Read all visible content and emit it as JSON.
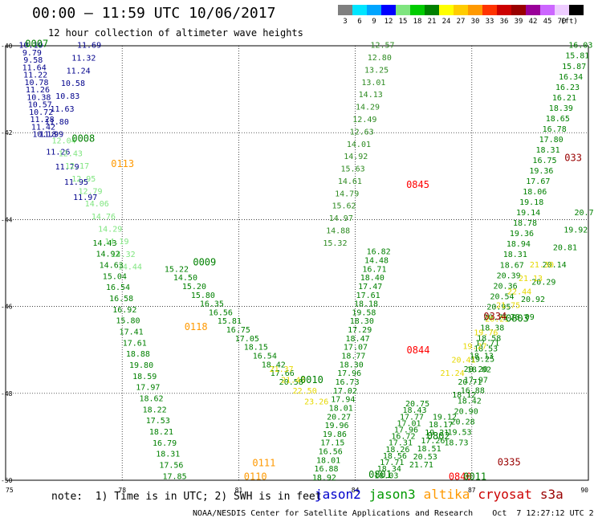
{
  "header": {
    "title": "00:00 – 11:59 UTC 10/06/2017",
    "subtitle": "12 hour collection of altimeter wave heights"
  },
  "colorbar": {
    "unit": "(ft)",
    "bins": [
      {
        "label": "3",
        "color": "#7f7f7f"
      },
      {
        "label": "6",
        "color": "#00e5ff"
      },
      {
        "label": "9",
        "color": "#00a5ff"
      },
      {
        "label": "12",
        "color": "#0000ff"
      },
      {
        "label": "15",
        "color": "#7fe57f"
      },
      {
        "label": "18",
        "color": "#00cc00"
      },
      {
        "label": "21",
        "color": "#008000"
      },
      {
        "label": "24",
        "color": "#ffff00"
      },
      {
        "label": "27",
        "color": "#ffcc00"
      },
      {
        "label": "30",
        "color": "#ff9900"
      },
      {
        "label": "33",
        "color": "#ff3300"
      },
      {
        "label": "36",
        "color": "#cc0000"
      },
      {
        "label": "39",
        "color": "#990000"
      },
      {
        "label": "42",
        "color": "#990099"
      },
      {
        "label": "45",
        "color": "#cc66ff"
      },
      {
        "label": "70",
        "color": "#eeccff"
      },
      {
        "label": "",
        "color": "#000000"
      }
    ]
  },
  "map": {
    "lon_ticks": [
      "75",
      "78",
      "81",
      "84",
      "87",
      "90"
    ],
    "lat_ticks": [
      "-40",
      "-42",
      "-44",
      "-46",
      "-48",
      "-50"
    ],
    "lon_range": [
      75,
      90
    ],
    "lat_range": [
      -50,
      -40
    ],
    "grid": true
  },
  "pass_labels": [
    {
      "text": "0007",
      "color": "#008000",
      "lon": 75.8,
      "lat": -40.03
    },
    {
      "text": "0008",
      "color": "#008000",
      "lon": 77.0,
      "lat": -42.21
    },
    {
      "text": "0113",
      "color": "#ff9900",
      "lon": 78.01,
      "lat": -42.79
    },
    {
      "text": "0009",
      "color": "#008000",
      "lon": 80.12,
      "lat": -45.06
    },
    {
      "text": "0118",
      "color": "#ff9900",
      "lon": 79.9,
      "lat": -46.54
    },
    {
      "text": "0010",
      "color": "#008000",
      "lon": 82.88,
      "lat": -47.76
    },
    {
      "text": "0845",
      "color": "#ff0000",
      "lon": 85.61,
      "lat": -43.27
    },
    {
      "text": "0844",
      "color": "#ff0000",
      "lon": 85.62,
      "lat": -47.08
    },
    {
      "text": "0802",
      "color": "#008000",
      "lon": 86.14,
      "lat": -49.06
    },
    {
      "text": "0801",
      "color": "#008000",
      "lon": 84.64,
      "lat": -49.94
    },
    {
      "text": "0111",
      "color": "#ff9900",
      "lon": 81.65,
      "lat": -49.68
    },
    {
      "text": "0110",
      "color": "#ff9900",
      "lon": 81.43,
      "lat": -49.99
    },
    {
      "text": "0840",
      "color": "#ff0000",
      "lon": 86.7,
      "lat": -49.99
    },
    {
      "text": "0011",
      "color": "#008000",
      "lon": 87.08,
      "lat": -49.99
    },
    {
      "text": "0335",
      "color": "#990000",
      "lon": 87.96,
      "lat": -49.66
    },
    {
      "text": "0334",
      "color": "#990000",
      "lon": 87.6,
      "lat": -46.3
    },
    {
      "text": "0803",
      "color": "#008000",
      "lon": 88.17,
      "lat": -46.35
    },
    {
      "text": "033",
      "color": "#990000",
      "lon": 89.61,
      "lat": -42.65
    }
  ],
  "tracks": [
    {
      "sat": "jason2",
      "color": "#00008b",
      "lon0": 77.15,
      "lat0": -40.05,
      "lon1": 76.18,
      "lat1": -42.1,
      "values": [
        "11.69",
        "11.32",
        "11.24",
        "10.58",
        "10.83",
        "11.63",
        "11.80",
        "11.99"
      ]
    },
    {
      "sat": "jason2",
      "color": "#00008b",
      "lon0": 75.65,
      "lat0": -40.05,
      "lon1": 76.0,
      "lat1": -42.1,
      "values": [
        "10.19",
        "9.79",
        "9.58",
        "11.64",
        "11.22",
        "10.78",
        "11.26",
        "10.38",
        "10.57",
        "10.72",
        "11.28",
        "11.42",
        "10.18"
      ]
    },
    {
      "sat": "jason2",
      "color": "#00008b",
      "lon0": 76.35,
      "lat0": -42.5,
      "lon1": 77.05,
      "lat1": -43.55,
      "values": [
        "11.26",
        "11.79",
        "11.95",
        "11.97"
      ]
    },
    {
      "sat": "jason3",
      "color": "#2e8b22",
      "lon0": 84.7,
      "lat0": -40.05,
      "lon1": 83.48,
      "lat1": -44.6,
      "values": [
        "12.57",
        "12.80",
        "13.25",
        "13.01",
        "14.13",
        "14.29",
        "12.49",
        "12.63",
        "14.01",
        "14.92",
        "15.63",
        "14.61",
        "14.79",
        "15.62",
        "14.97",
        "14.88",
        "15.32"
      ]
    },
    {
      "sat": "jason3",
      "color": "#7fe57f",
      "lon0": 76.5,
      "lat0": -42.25,
      "lon1": 78.2,
      "lat1": -45.15,
      "values": [
        "12.04",
        "12.43",
        "12.17",
        "12.95",
        "12.79",
        "14.06",
        "14.76",
        "14.29",
        "14.19",
        "14.32",
        "14.44"
      ]
    },
    {
      "sat": "jason3",
      "color": "#008000",
      "lon0": 77.55,
      "lat0": -44.6,
      "lon1": 79.35,
      "lat1": -49.97,
      "values": [
        "14.43",
        "14.92",
        "14.63",
        "15.04",
        "16.54",
        "16.58",
        "16.92",
        "15.80",
        "17.41",
        "17.61",
        "18.88",
        "19.80",
        "18.59",
        "17.97",
        "18.62",
        "18.22",
        "17.53",
        "18.21",
        "16.79",
        "18.31",
        "17.56",
        "17.85"
      ]
    },
    {
      "sat": "jason3",
      "color": "#008000",
      "lon0": 79.4,
      "lat0": -45.2,
      "lon1": 82.35,
      "lat1": -47.8,
      "values": [
        "15.22",
        "14.50",
        "15.20",
        "15.80",
        "16.35",
        "16.56",
        "15.81",
        "16.75",
        "17.05",
        "18.15",
        "16.54",
        "18.42",
        "17.66",
        "20.58"
      ]
    },
    {
      "sat": "jason3",
      "color": "#008000",
      "lon0": 84.6,
      "lat0": -44.8,
      "lon1": 83.2,
      "lat1": -50.0,
      "values": [
        "16.82",
        "14.48",
        "16.71",
        "18.40",
        "17.47",
        "17.61",
        "18.18",
        "19.58",
        "18.30",
        "17.29",
        "18.47",
        "17.07",
        "18.77",
        "18.30",
        "17.96",
        "16.73",
        "17.02",
        "17.94",
        "18.01",
        "20.27",
        "19.96",
        "19.86",
        "17.15",
        "16.56",
        "18.01",
        "16.88",
        "18.92"
      ]
    },
    {
      "sat": "jason3",
      "color": "#008000",
      "lon0": 89.8,
      "lat0": -40.05,
      "lon1": 86.6,
      "lat1": -49.2,
      "values": [
        "16.03",
        "15.81",
        "15.87",
        "16.34",
        "16.23",
        "16.21",
        "18.39",
        "18.65",
        "16.78",
        "17.80",
        "18.31",
        "16.75",
        "19.36",
        "17.67",
        "18.06",
        "19.18",
        "19.14",
        "18.78",
        "19.36",
        "18.94",
        "18.31",
        "18.67",
        "20.39",
        "20.36",
        "20.54",
        "20.95",
        "20.75",
        "18.38",
        "18.58",
        "18.53",
        "19.25",
        "18.02",
        "17.97",
        "16.88",
        "18.42",
        "20.90",
        "20.28",
        "19.53",
        "18.73"
      ]
    },
    {
      "sat": "altika",
      "color": "#e6d800",
      "lon0": 82.1,
      "lat0": -47.5,
      "lon1": 83.0,
      "lat1": -48.25,
      "values": [
        "21.37",
        "21.46",
        "22.50",
        "23.26"
      ]
    },
    {
      "sat": "jason3",
      "color": "#008000",
      "lon0": 89.95,
      "lat0": -43.9,
      "lon1": 88.3,
      "lat1": -46.3,
      "values": [
        "20.75",
        "19.92",
        "20.81",
        "20.14",
        "20.29",
        "20.92",
        "20.09"
      ]
    },
    {
      "sat": "altika",
      "color": "#e6d800",
      "lon0": 88.8,
      "lat0": -45.1,
      "lon1": 86.5,
      "lat1": -47.6,
      "values": [
        "21.30",
        "21.13",
        "22.44",
        "21.75",
        "20.21",
        "19.76",
        "19.27",
        "20.41",
        "21.24"
      ]
    },
    {
      "sat": "jason3",
      "color": "#008000",
      "lon0": 85.6,
      "lat0": -48.3,
      "lon1": 84.8,
      "lat1": -49.95,
      "values": [
        "20.75",
        "18.43",
        "17.77",
        "17.01",
        "17.96",
        "16.72",
        "17.31",
        "18.26",
        "18.56",
        "17.71",
        "18.34",
        "18.03"
      ]
    },
    {
      "sat": "jason3",
      "color": "#008000",
      "lon0": 86.3,
      "lat0": -48.6,
      "lon1": 85.7,
      "lat1": -49.7,
      "values": [
        "19.12",
        "18.17",
        "19.21",
        "17.26",
        "18.51",
        "20.53",
        "21.71"
      ]
    },
    {
      "sat": "jason3",
      "color": "#008000",
      "lon0": 87.4,
      "lat0": -46.9,
      "lon1": 86.8,
      "lat1": -48.1,
      "values": [
        "17.71",
        "18.13",
        "20.20",
        "20.71",
        "18.12"
      ]
    }
  ],
  "footer": {
    "note": "note:  1) Time is in UTC; 2) SWH is in feet",
    "legend": [
      {
        "label": "jason2",
        "color": "#0000cc"
      },
      {
        "label": "jason3",
        "color": "#009900"
      },
      {
        "label": "altika",
        "color": "#ff9900"
      },
      {
        "label": "cryosat",
        "color": "#cc0000"
      },
      {
        "label": "s3a",
        "color": "#990000"
      }
    ],
    "credit": "NOAA/NESDIS Center for Satellite Applications and Research    Oct  7 12:27:12 UTC 2017"
  }
}
